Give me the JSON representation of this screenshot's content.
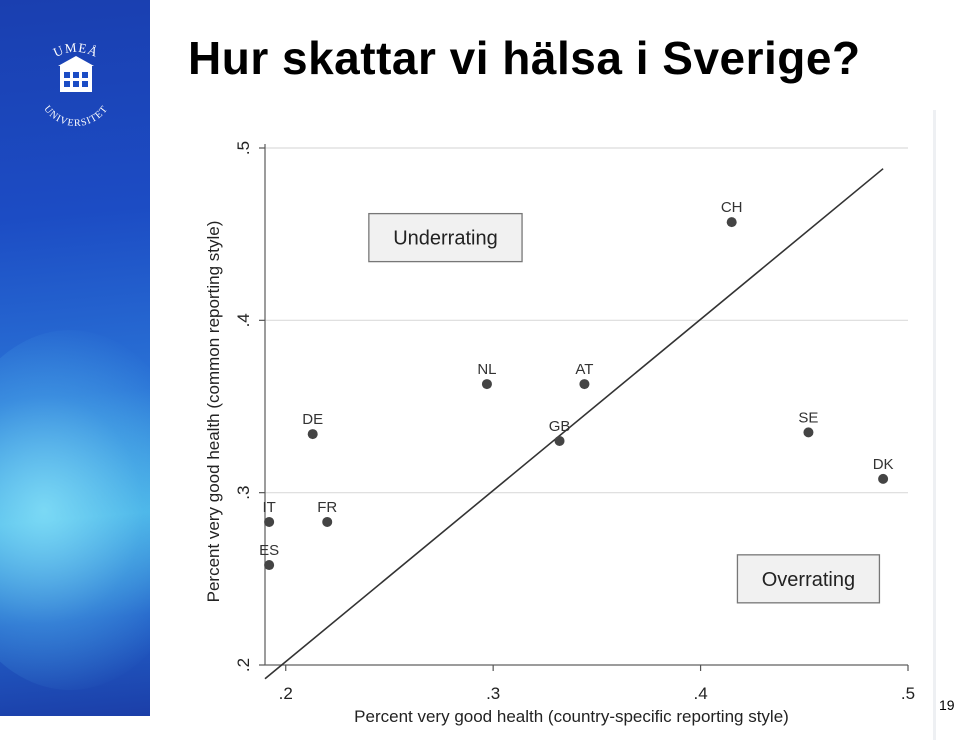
{
  "slide": {
    "title": "Hur skattar vi hälsa i Sverige?",
    "page_number": "19"
  },
  "logo": {
    "icon": "umea-university-seal-icon",
    "text": "UMEÅ UNIVERSITET"
  },
  "colors": {
    "panel_blue": "#1c4cc4",
    "point": "#444444",
    "line": "#333333",
    "grid": "#dcdcdc"
  },
  "chart_data": {
    "type": "scatter",
    "title": "",
    "xlabel": "Percent very good health (country-specific reporting style)",
    "ylabel": "Percent very good health (common reporting style)",
    "xlim": [
      0.19,
      0.5
    ],
    "ylim": [
      0.2,
      0.5
    ],
    "xticks": [
      0.2,
      0.3,
      0.4,
      0.5
    ],
    "xtick_labels": [
      ".2",
      ".3",
      ".4",
      ".5"
    ],
    "yticks": [
      0.2,
      0.3,
      0.4,
      0.5
    ],
    "ytick_labels": [
      ".2",
      ".3",
      ".4",
      ".5"
    ],
    "grid": true,
    "points": [
      {
        "label": "CH",
        "x": 0.415,
        "y": 0.457
      },
      {
        "label": "NL",
        "x": 0.297,
        "y": 0.363
      },
      {
        "label": "AT",
        "x": 0.344,
        "y": 0.363
      },
      {
        "label": "GB",
        "x": 0.332,
        "y": 0.33
      },
      {
        "label": "DE",
        "x": 0.213,
        "y": 0.334
      },
      {
        "label": "SE",
        "x": 0.452,
        "y": 0.335
      },
      {
        "label": "DK",
        "x": 0.488,
        "y": 0.308
      },
      {
        "label": "IT",
        "x": 0.192,
        "y": 0.283
      },
      {
        "label": "FR",
        "x": 0.22,
        "y": 0.283
      },
      {
        "label": "ES",
        "x": 0.192,
        "y": 0.258
      }
    ],
    "reference_line": {
      "x": [
        0.19,
        0.488
      ],
      "y": [
        0.192,
        0.488
      ]
    },
    "annotations": [
      {
        "text": "Underrating",
        "x": 0.277,
        "y": 0.448
      },
      {
        "text": "Overrating",
        "x": 0.452,
        "y": 0.25
      }
    ]
  }
}
